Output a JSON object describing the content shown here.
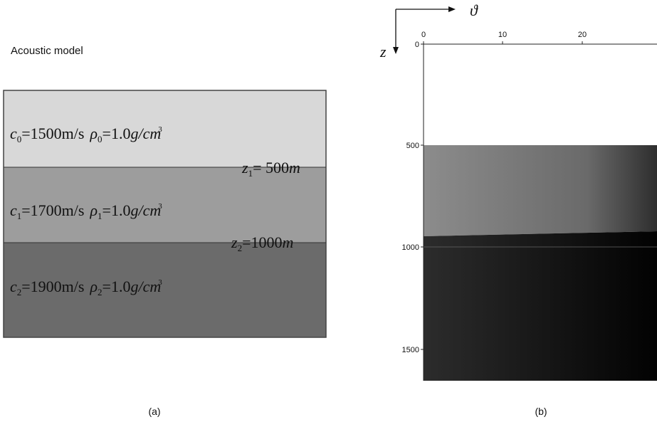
{
  "panel_a": {
    "title": "Acoustic model",
    "layers": [
      {
        "symbol": "c",
        "index": "0",
        "speed": "=1500m/s",
        "rho": "ρ",
        "rho_index": "0",
        "density": "=1.0",
        "unit": "g/cm",
        "power": "3"
      },
      {
        "symbol": "c",
        "index": "1",
        "speed": "=1700m/s",
        "rho": "ρ",
        "rho_index": "1",
        "density": "=1.0",
        "unit": "g/cm",
        "power": "3"
      },
      {
        "symbol": "c",
        "index": "2",
        "speed": "=1900m/s",
        "rho": "ρ",
        "rho_index": "2",
        "density": "=1.0",
        "unit": "g/cm",
        "power": "3"
      }
    ],
    "interfaces": [
      {
        "symbol": "z",
        "index": "1",
        "value": "= 500",
        "unit": "m"
      },
      {
        "symbol": "z",
        "index": "2",
        "value": "=1000",
        "unit": "m"
      }
    ],
    "caption": "(a)"
  },
  "panel_b": {
    "x_label": "ϑ",
    "z_label": "z",
    "xticks": [
      "0",
      "10",
      "20"
    ],
    "zticks": [
      "0",
      "500",
      "1000",
      "1500"
    ],
    "caption": "(b)"
  }
}
